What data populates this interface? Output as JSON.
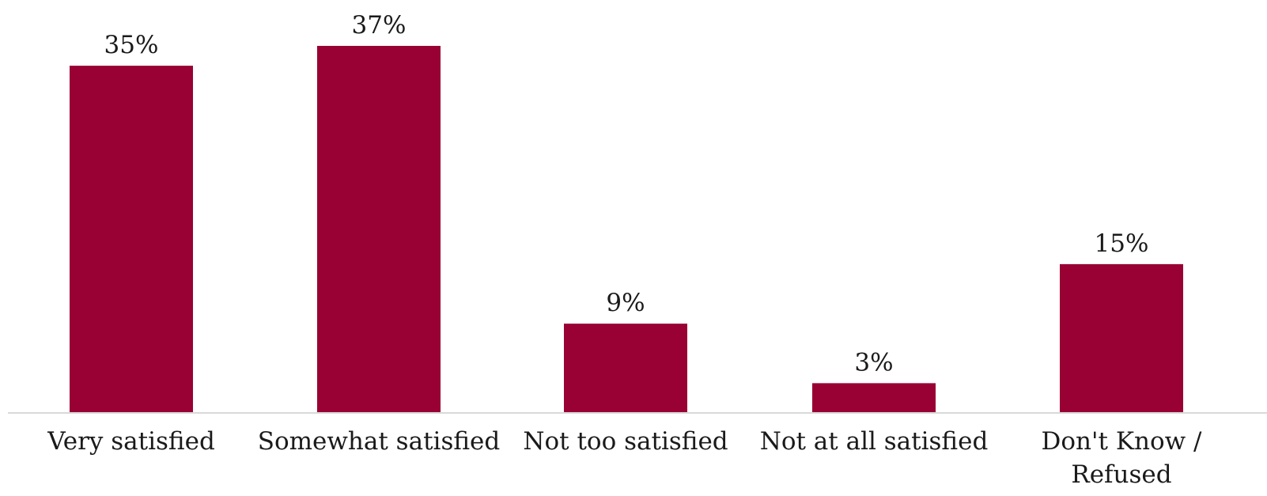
{
  "chart_data": {
    "type": "bar",
    "categories": [
      [
        "Very satisfied"
      ],
      [
        "Somewhat satisfied"
      ],
      [
        "Not too satisfied"
      ],
      [
        "Not at all satisfied"
      ],
      [
        "Don't Know /",
        "Refused"
      ]
    ],
    "values": [
      35,
      37,
      9,
      3,
      15
    ],
    "value_labels": [
      "35%",
      "37%",
      "9%",
      "3%",
      "15%"
    ],
    "bar_color": "#990033",
    "axis_color": "#d9d9d9",
    "grid": false,
    "ylim": [
      0,
      37
    ]
  }
}
